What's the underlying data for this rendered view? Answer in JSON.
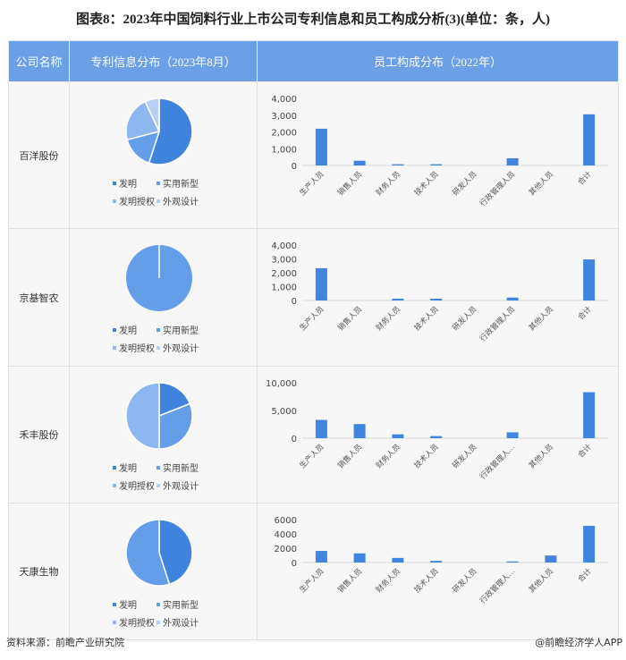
{
  "title": "图表8：2023年中国饲料行业上市公司专利信息和员工构成分析(3)(单位：条，人)",
  "headers": {
    "company": "公司名称",
    "patent": "专利信息分布（2023年8月）",
    "staff": "员工构成分布（2022年）"
  },
  "footer": {
    "source": "资料来源：前瞻产业研究院",
    "brand": "@前瞻经济学人APP"
  },
  "colors": {
    "header": "#6b9fe6",
    "bar": "#4185e1",
    "发明": "#3f83df",
    "实用新型": "#649ee9",
    "发明授权": "#8db7f0",
    "外观设计": "#b5cff5"
  },
  "chart_data": [
    {
      "company": "百洋股份",
      "pie": {
        "type": "pie",
        "labels": [
          "发明",
          "实用新型",
          "发明授权",
          "外观设计"
        ],
        "values": [
          55,
          16,
          22,
          7
        ]
      },
      "bar": {
        "type": "bar",
        "categories": [
          "生产人员",
          "销售人员",
          "财务人员",
          "技术人员",
          "研发人员",
          "行政管理人员",
          "其他人员",
          "合计"
        ],
        "values": [
          2190,
          280,
          70,
          70,
          0,
          430,
          0,
          3050
        ],
        "ylim": [
          0,
          4000
        ],
        "ticks": [
          "0",
          "1,000",
          "2,000",
          "3,000",
          "4,000"
        ]
      }
    },
    {
      "company": "京基智农",
      "pie": {
        "type": "pie",
        "labels": [
          "发明",
          "实用新型",
          "发明授权",
          "外观设计"
        ],
        "values": [
          0,
          100,
          0,
          0
        ]
      },
      "bar": {
        "type": "bar",
        "categories": [
          "生产人员",
          "销售人员",
          "财务人员",
          "技术人员",
          "研发人员",
          "行政管理人员",
          "其他人员",
          "合计"
        ],
        "values": [
          2330,
          0,
          130,
          130,
          0,
          210,
          0,
          2960
        ],
        "ylim": [
          0,
          4000
        ],
        "ticks": [
          "0",
          "1,000",
          "2,000",
          "3,000",
          "4,000"
        ]
      }
    },
    {
      "company": "禾丰股份",
      "pie": {
        "type": "pie",
        "labels": [
          "发明",
          "实用新型",
          "发明授权",
          "外观设计"
        ],
        "values": [
          19,
          31,
          50,
          0
        ]
      },
      "bar": {
        "type": "bar",
        "categories": [
          "生产人员",
          "销售人员",
          "财务人员",
          "技术人员",
          "研发人员",
          "行政管理人…",
          "其他人员",
          "合计"
        ],
        "values": [
          3300,
          2550,
          700,
          380,
          0,
          1060,
          0,
          8300
        ],
        "ylim": [
          0,
          10000
        ],
        "ticks": [
          "0",
          "5,000",
          "10,000"
        ]
      }
    },
    {
      "company": "天康生物",
      "pie": {
        "type": "pie",
        "labels": [
          "发明",
          "实用新型",
          "发明授权",
          "外观设计"
        ],
        "values": [
          45,
          55,
          0,
          0
        ]
      },
      "bar": {
        "type": "bar",
        "categories": [
          "生产人员",
          "销售人员",
          "财务人员",
          "技术人员",
          "研发人员",
          "行政管理人…",
          "其他人员",
          "合计"
        ],
        "values": [
          1620,
          1280,
          640,
          230,
          0,
          150,
          980,
          5130
        ],
        "ylim": [
          0,
          6000
        ],
        "ticks": [
          "0",
          "2000",
          "4000",
          "6000"
        ]
      }
    }
  ]
}
